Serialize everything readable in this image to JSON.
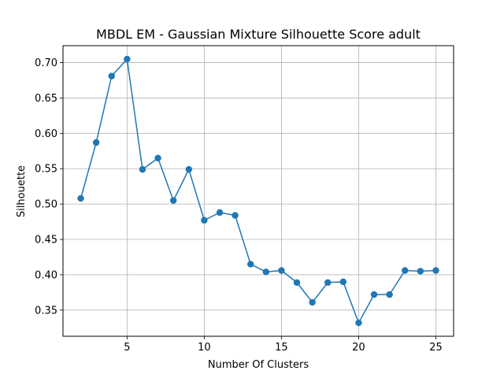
{
  "chart_data": {
    "type": "line",
    "title": "MBDL EM - Gaussian Mixture Silhouette Score adult",
    "xlabel": "Number Of Clusters",
    "ylabel": "Silhouette",
    "x": [
      2,
      3,
      4,
      5,
      6,
      7,
      8,
      9,
      10,
      11,
      12,
      13,
      14,
      15,
      16,
      17,
      18,
      19,
      20,
      21,
      22,
      23,
      24,
      25
    ],
    "series": [
      {
        "values": [
          0.508,
          0.587,
          0.681,
          0.705,
          0.549,
          0.565,
          0.505,
          0.549,
          0.477,
          0.488,
          0.484,
          0.415,
          0.404,
          0.406,
          0.389,
          0.361,
          0.389,
          0.39,
          0.332,
          0.372,
          0.372,
          0.406,
          0.405,
          0.406
        ],
        "color": "#1f77b4",
        "marker": "circle"
      }
    ],
    "xlim": [
      0.85,
      26.15
    ],
    "ylim": [
      0.313,
      0.724
    ],
    "xticks": [
      5,
      10,
      15,
      20,
      25
    ],
    "xtick_labels": [
      "5",
      "10",
      "15",
      "20",
      "25"
    ],
    "yticks": [
      0.35,
      0.4,
      0.45,
      0.5,
      0.55,
      0.6,
      0.65,
      0.7
    ],
    "ytick_labels": [
      "0.35",
      "0.40",
      "0.45",
      "0.50",
      "0.55",
      "0.60",
      "0.65",
      "0.70"
    ],
    "grid": true,
    "grid_color": "#b0b0b0"
  }
}
